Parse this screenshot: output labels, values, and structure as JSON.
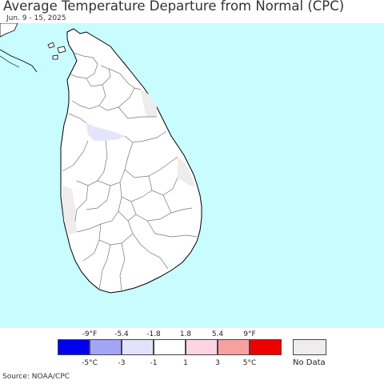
{
  "header": {
    "title": "Average Temperature Departure from Normal (CPC)",
    "subtitle": "Jun. 9 - 15, 2025"
  },
  "colors": {
    "ocean": "#c8fcfe",
    "land": "#ffffff",
    "boundary": "#777777",
    "coast": "#000000",
    "slight_cool": "#e4e4fc",
    "no_data_fill": "#f0ecee"
  },
  "legend": {
    "fahrenheit_ticks": [
      "-9°F",
      "-5.4",
      "-1.8",
      "1.8",
      "5.4",
      "9°F"
    ],
    "celsius_ticks": [
      "-5°C",
      "-3",
      "-1",
      "1",
      "3",
      "5°C"
    ],
    "bins": [
      {
        "color": "#0000ee"
      },
      {
        "color": "#a4a4f6"
      },
      {
        "color": "#e2e2fc"
      },
      {
        "color": "#ffffff"
      },
      {
        "color": "#fdd4e4"
      },
      {
        "color": "#f8a0a0"
      },
      {
        "color": "#ee0000"
      }
    ],
    "no_data_label": "No Data",
    "no_data_color": "#f0ecee"
  },
  "footer": {
    "source": "Source: NOAA/CPC"
  }
}
